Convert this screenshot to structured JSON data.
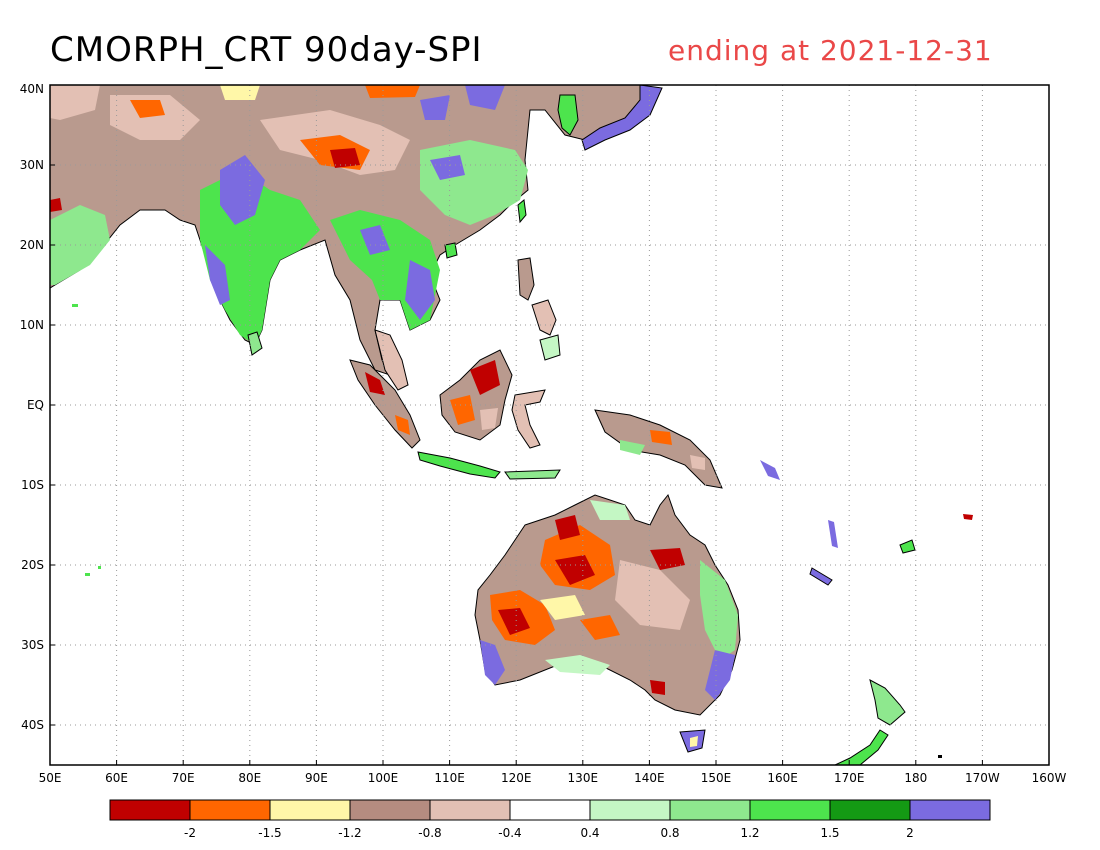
{
  "title": {
    "left": "CMORPH_CRT 90day-SPI",
    "right": "ending at 2021-12-31"
  },
  "axes": {
    "lon_labels": [
      "50E",
      "60E",
      "70E",
      "80E",
      "90E",
      "100E",
      "110E",
      "120E",
      "130E",
      "140E",
      "150E",
      "160E",
      "170E",
      "180",
      "170W",
      "160W"
    ],
    "lat_labels": [
      "40N",
      "30N",
      "20N",
      "10N",
      "EQ",
      "10S",
      "20S",
      "30S",
      "40S"
    ],
    "lon_range": [
      50,
      200
    ],
    "lat_range": [
      -45,
      40
    ],
    "grid": "dotted"
  },
  "colorbar": {
    "colors": [
      "#c00000",
      "#ff6600",
      "#fff7a8",
      "#b58c80",
      "#e3c0b4",
      "#ffffff",
      "#c4f7c4",
      "#8ee88e",
      "#4de44d",
      "#149a14",
      "#7b6be0"
    ],
    "labels": [
      "-2",
      "-1.5",
      "-1.2",
      "-0.8",
      "-0.4",
      "0.4",
      "0.8",
      "1.2",
      "1.5",
      "2"
    ]
  },
  "colors": {
    "title_right": "#ea4848",
    "ocean": "#ffffff"
  }
}
